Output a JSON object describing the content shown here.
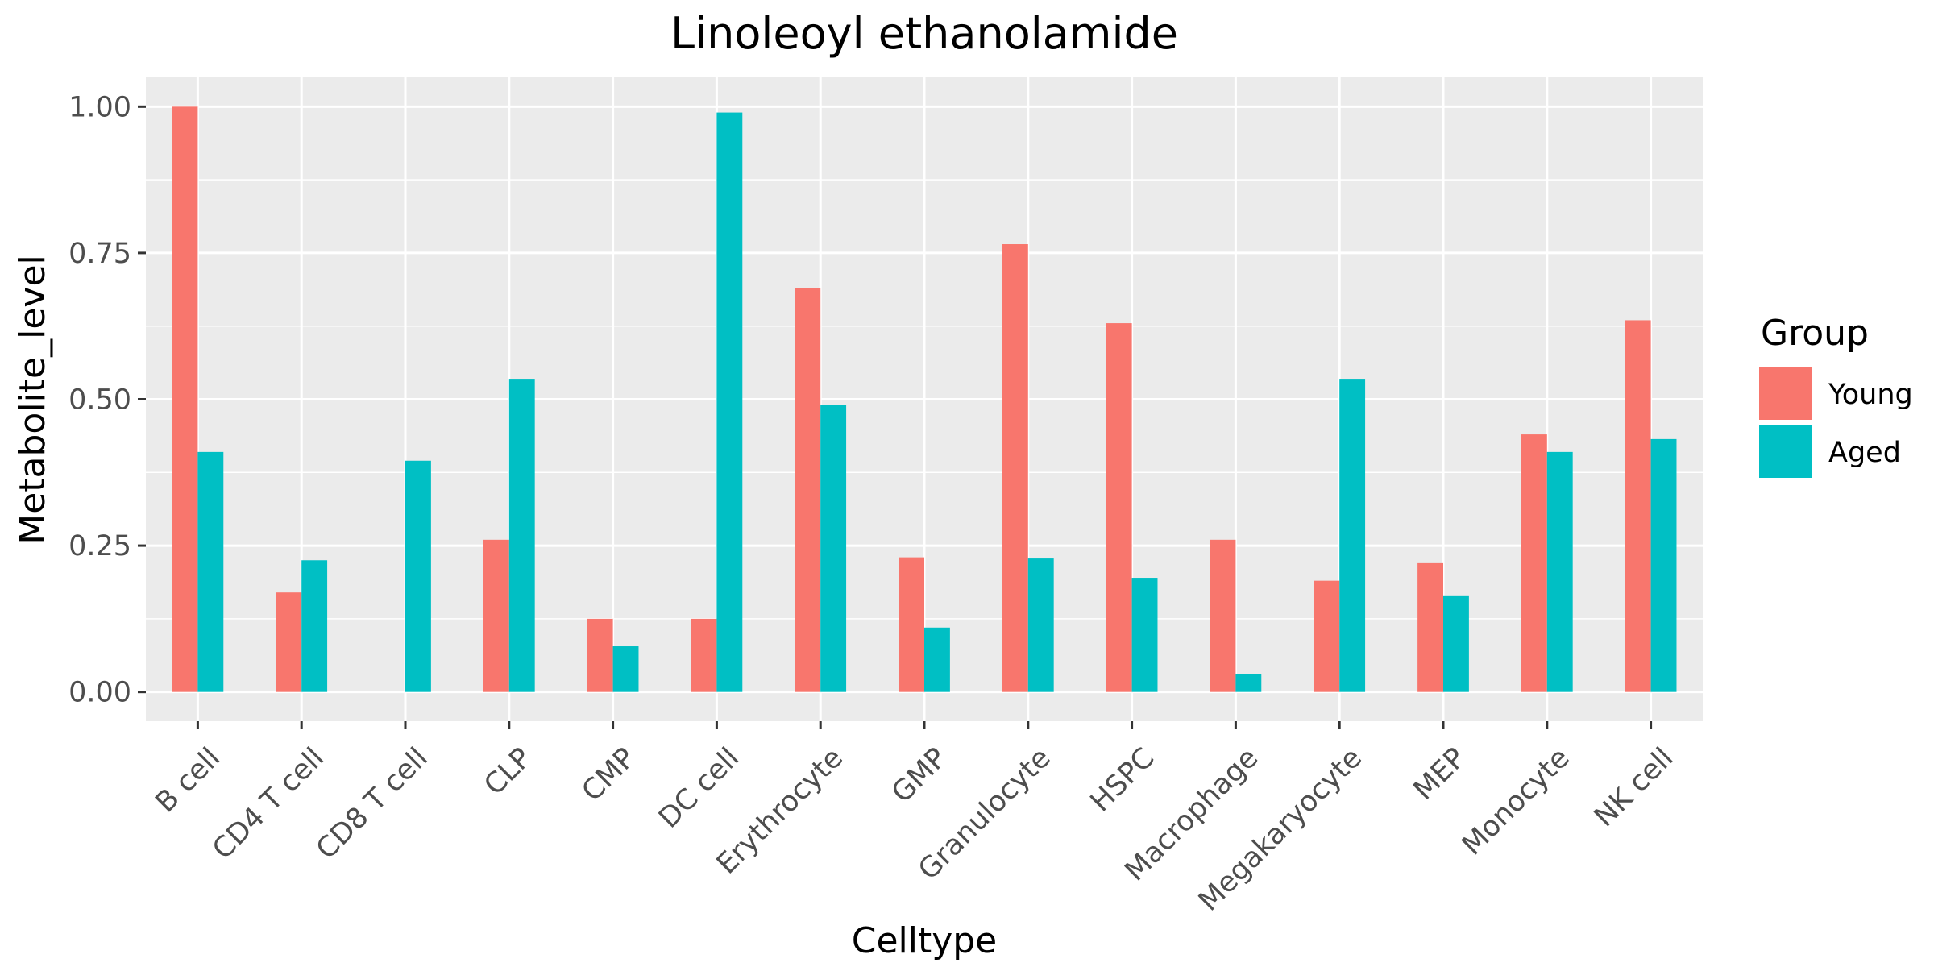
{
  "chart_data": {
    "type": "bar",
    "title": "Linoleoyl ethanolamide",
    "xlabel": "Celltype",
    "ylabel": "Metabolite_level",
    "ylim": [
      -0.05,
      1.05
    ],
    "y_ticks": [
      0.0,
      0.25,
      0.5,
      0.75,
      1.0
    ],
    "y_tick_labels": [
      "0.00",
      "0.25",
      "0.50",
      "0.75",
      "1.00"
    ],
    "categories": [
      "B cell",
      "CD4 T cell",
      "CD8 T cell",
      "CLP",
      "CMP",
      "DC cell",
      "Erythrocyte",
      "GMP",
      "Granulocyte",
      "HSPC",
      "Macrophage",
      "Megakaryocyte",
      "MEP",
      "Monocyte",
      "NK cell"
    ],
    "series": [
      {
        "name": "Young",
        "color": "#F8766D",
        "values": [
          1.0,
          0.17,
          0.0,
          0.26,
          0.125,
          0.125,
          0.69,
          0.23,
          0.765,
          0.63,
          0.26,
          0.19,
          0.22,
          0.44,
          0.635
        ]
      },
      {
        "name": "Aged",
        "color": "#00BFC4",
        "values": [
          0.41,
          0.225,
          0.395,
          0.535,
          0.078,
          0.99,
          0.49,
          0.11,
          0.228,
          0.195,
          0.03,
          0.535,
          0.165,
          0.41,
          0.432
        ]
      }
    ],
    "legend": {
      "title": "Group",
      "position": "right"
    },
    "grid": true,
    "colors": {
      "panel_bg": "#EBEBEB",
      "grid": "#FFFFFF",
      "tick": "#333333"
    }
  }
}
